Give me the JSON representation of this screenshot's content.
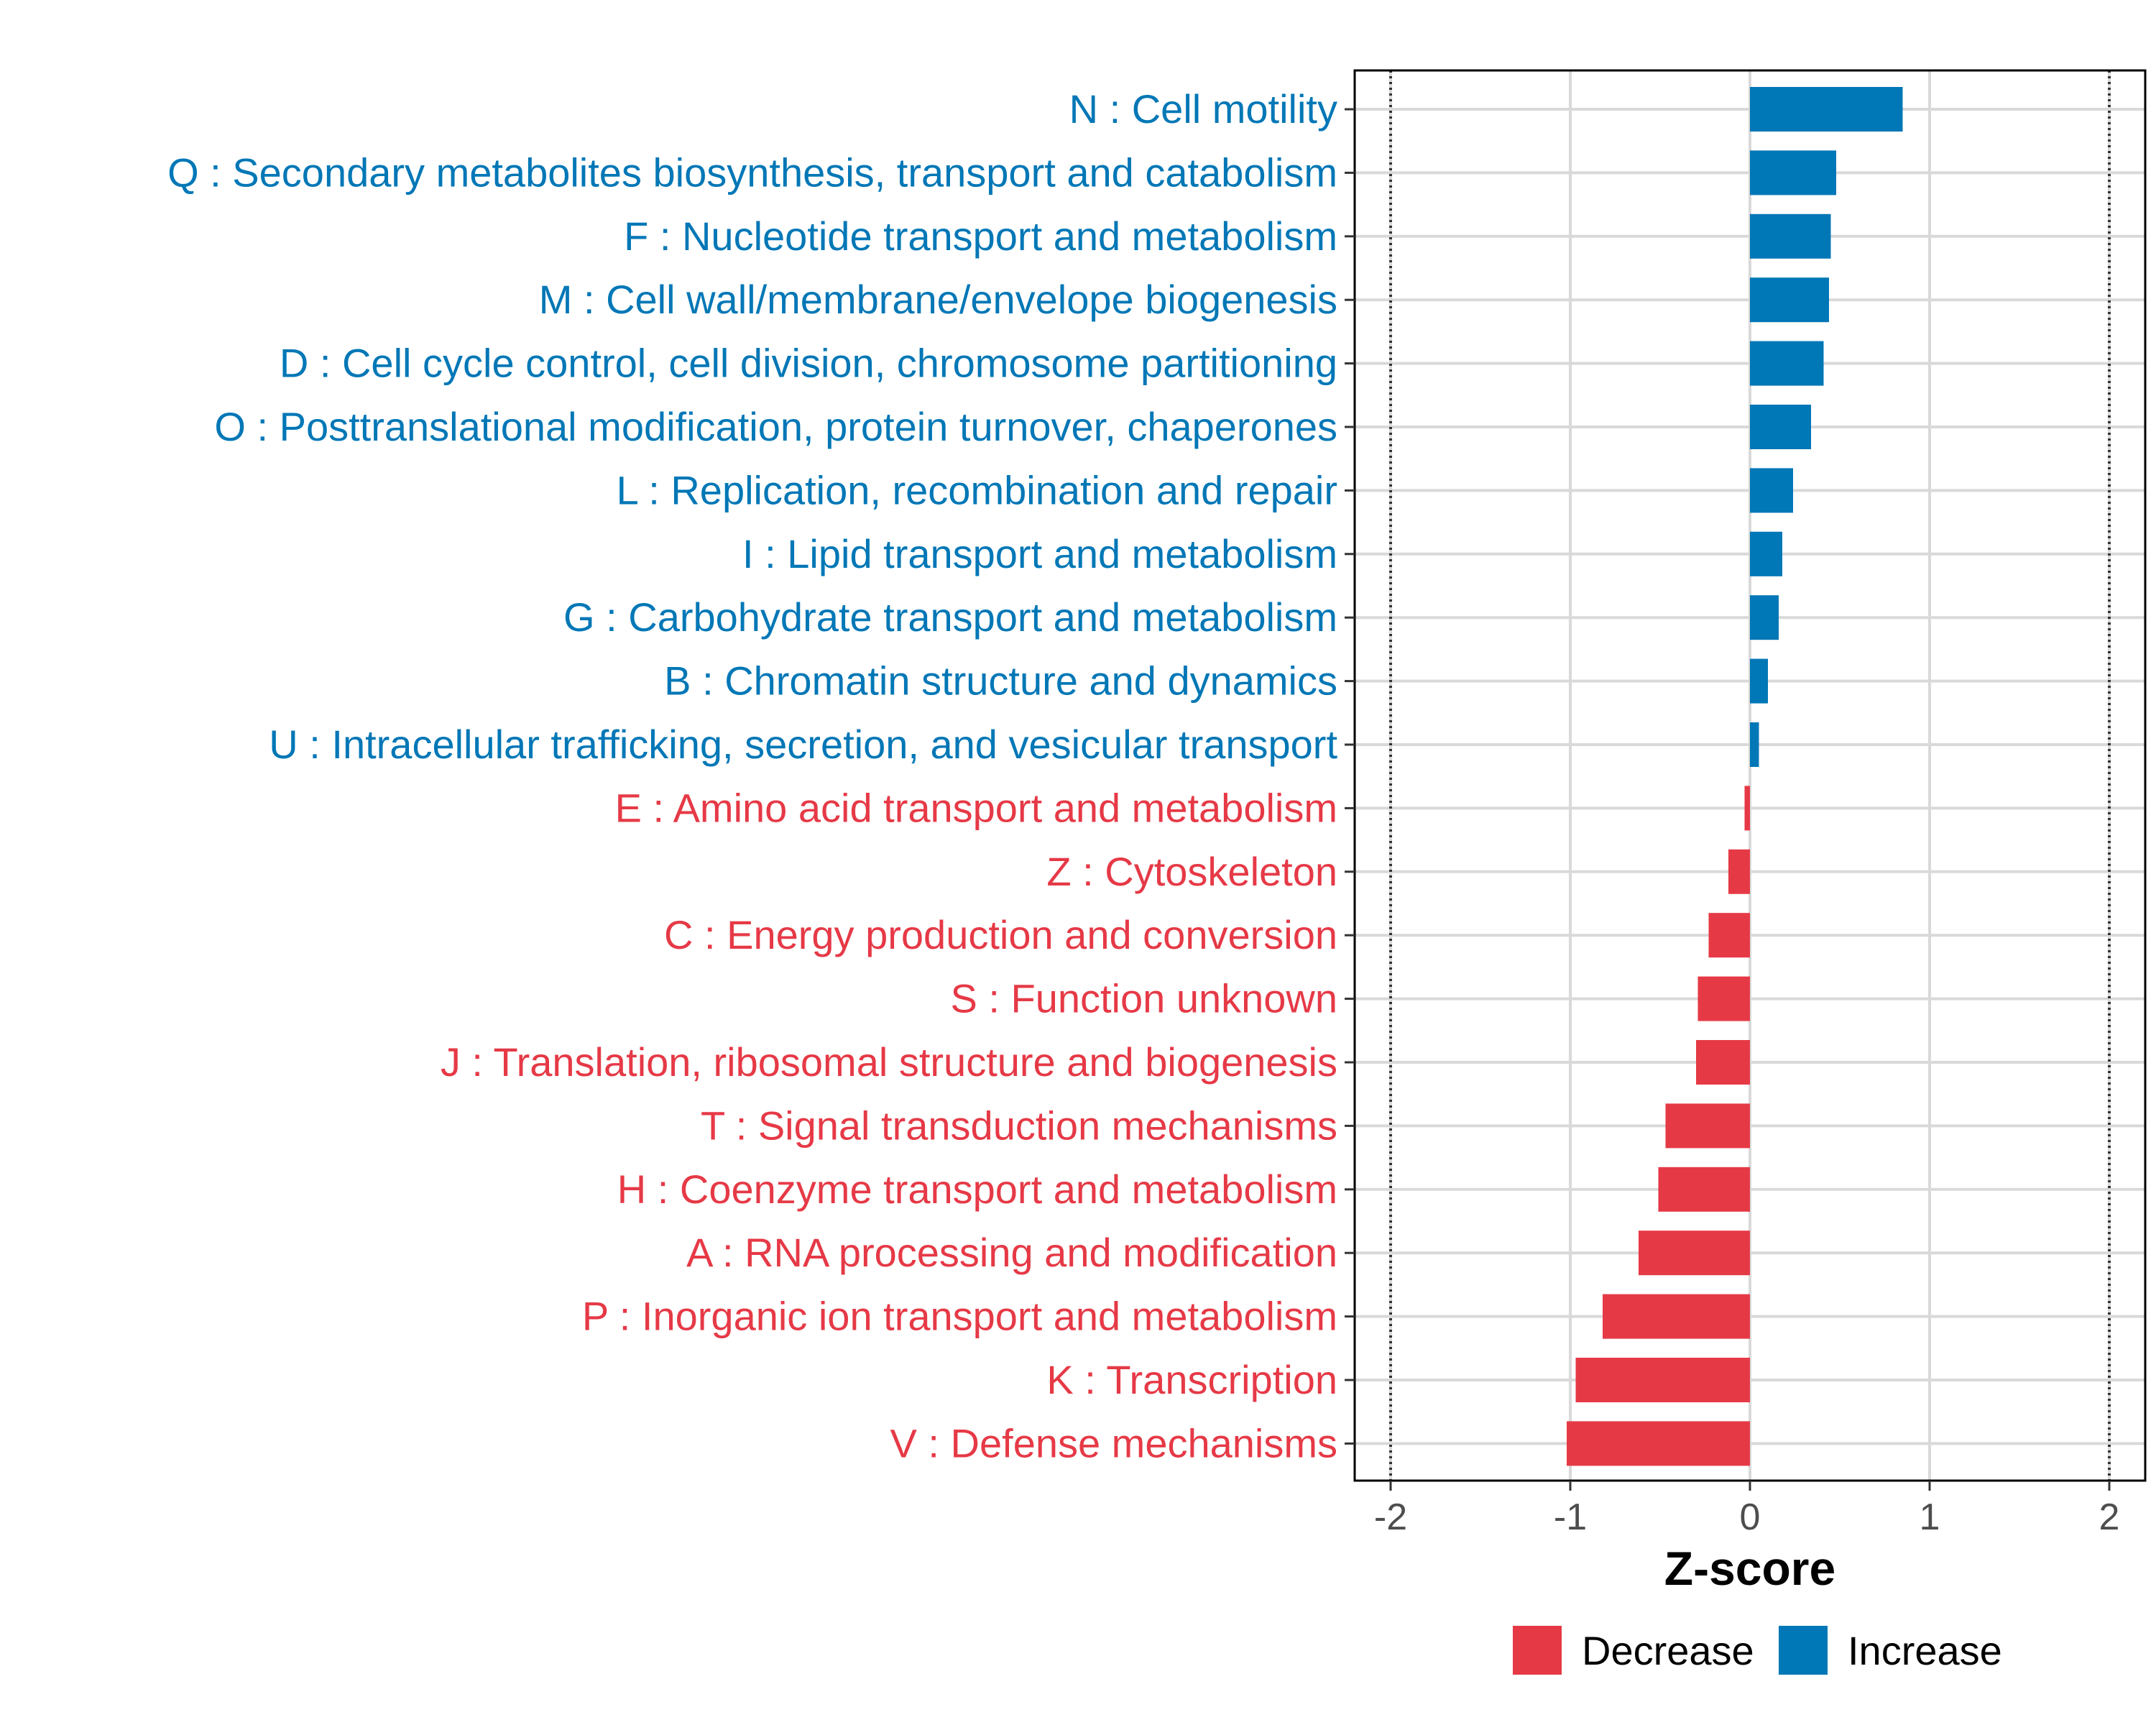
{
  "chart_data": {
    "type": "bar",
    "orientation": "horizontal",
    "title": "",
    "xlabel": "Z-score",
    "ylabel": "",
    "xlim": [
      -2.2,
      2.2
    ],
    "xticks": [
      -2,
      -1,
      0,
      1,
      2
    ],
    "xtick_labels": [
      "-2",
      "-1",
      "0",
      "1",
      "2"
    ],
    "reference_lines": [
      -2,
      2
    ],
    "grid": true,
    "categories": [
      "N : Cell motility",
      "Q : Secondary metabolites biosynthesis, transport and catabolism",
      "F : Nucleotide transport and metabolism",
      "M : Cell wall/membrane/envelope biogenesis",
      "D : Cell cycle control, cell division, chromosome partitioning",
      "O : Posttranslational modification, protein turnover, chaperones",
      "L : Replication, recombination and repair",
      "I : Lipid transport and metabolism",
      "G : Carbohydrate transport and metabolism",
      "B : Chromatin structure and dynamics",
      "U : Intracellular trafficking, secretion, and vesicular transport",
      "E : Amino acid transport and metabolism",
      "Z : Cytoskeleton",
      "C : Energy production and conversion",
      "S : Function unknown",
      "J : Translation, ribosomal structure and biogenesis",
      "T : Signal transduction mechanisms",
      "H : Coenzyme transport and metabolism",
      "A : RNA processing and modification",
      "P : Inorganic ion transport and metabolism",
      "K : Transcription",
      "V : Defense mechanisms"
    ],
    "values": [
      0.85,
      0.48,
      0.45,
      0.44,
      0.41,
      0.34,
      0.24,
      0.18,
      0.16,
      0.1,
      0.05,
      -0.03,
      -0.12,
      -0.23,
      -0.29,
      -0.3,
      -0.47,
      -0.51,
      -0.62,
      -0.82,
      -0.97,
      -1.02
    ],
    "groups": [
      "Increase",
      "Increase",
      "Increase",
      "Increase",
      "Increase",
      "Increase",
      "Increase",
      "Increase",
      "Increase",
      "Increase",
      "Increase",
      "Decrease",
      "Decrease",
      "Decrease",
      "Decrease",
      "Decrease",
      "Decrease",
      "Decrease",
      "Decrease",
      "Decrease",
      "Decrease",
      "Decrease"
    ],
    "legend": {
      "position": "bottom",
      "entries": [
        {
          "label": "Decrease",
          "color": "#E63946"
        },
        {
          "label": "Increase",
          "color": "#0077B6"
        }
      ]
    },
    "colors": {
      "Increase": "#0077B6",
      "Decrease": "#E63946"
    }
  }
}
